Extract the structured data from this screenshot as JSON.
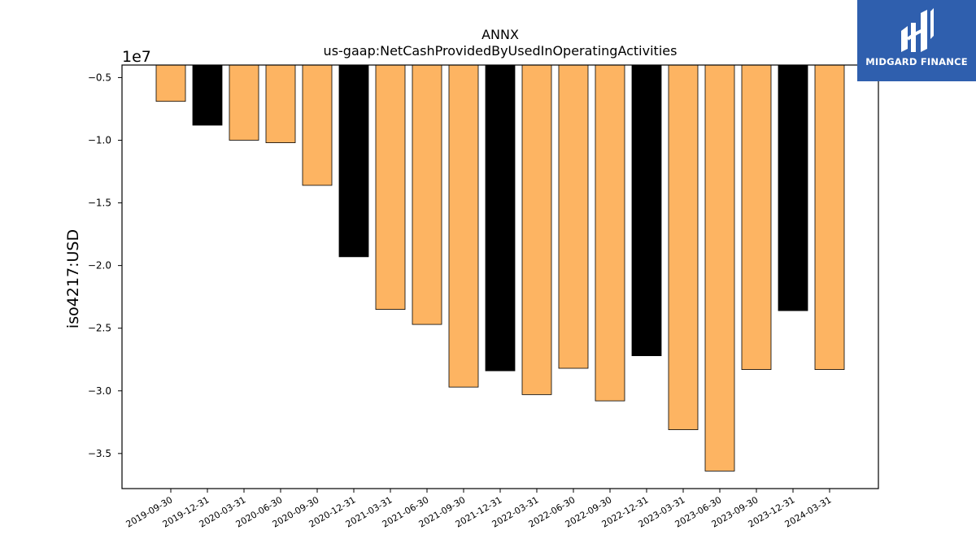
{
  "brand": {
    "name": "MIDGARD FINANCE",
    "colors": {
      "background": "#2f5fae",
      "foreground": "#ffffff"
    }
  },
  "chart_data": {
    "type": "bar",
    "title": "ANNX",
    "subtitle": "us-gaap:NetCashProvidedByUsedInOperatingActivities",
    "xlabel": "",
    "ylabel": "iso4217:USD",
    "y_multiplier_label": "1e7",
    "ylim": [
      -3.78,
      -0.4
    ],
    "yticks": [
      -0.5,
      -1.0,
      -1.5,
      -2.0,
      -2.5,
      -3.0,
      -3.5
    ],
    "ytick_labels": [
      "−0.5",
      "−1.0",
      "−1.5",
      "−2.0",
      "−2.5",
      "−3.0",
      "−3.5"
    ],
    "grid": false,
    "colors": {
      "quarter": "#fdb462",
      "fiscal_year_end": "#000000",
      "edge": "#000000"
    },
    "categories": [
      "2019-09-30",
      "2019-12-31",
      "2020-03-31",
      "2020-06-30",
      "2020-09-30",
      "2020-12-31",
      "2021-03-31",
      "2021-06-30",
      "2021-09-30",
      "2021-12-31",
      "2022-03-31",
      "2022-06-30",
      "2022-09-30",
      "2022-12-31",
      "2023-03-31",
      "2023-06-30",
      "2023-09-30",
      "2023-12-31",
      "2024-03-31"
    ],
    "values": [
      -0.69,
      -0.88,
      -1.0,
      -1.02,
      -1.36,
      -1.93,
      -2.35,
      -2.47,
      -2.97,
      -2.84,
      -3.03,
      -2.82,
      -3.08,
      -2.72,
      -3.31,
      -3.64,
      -2.83,
      -2.36,
      -2.83
    ],
    "bar_kind": [
      "quarter",
      "fiscal_year_end",
      "quarter",
      "quarter",
      "quarter",
      "fiscal_year_end",
      "quarter",
      "quarter",
      "quarter",
      "fiscal_year_end",
      "quarter",
      "quarter",
      "quarter",
      "fiscal_year_end",
      "quarter",
      "quarter",
      "quarter",
      "fiscal_year_end",
      "quarter"
    ]
  }
}
